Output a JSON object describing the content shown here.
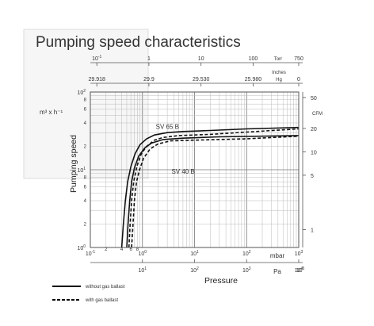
{
  "chart_data": {
    "type": "line",
    "title": "Pumping speed characteristics",
    "xlabel": "Pressure",
    "ylabel": "Pumping speed",
    "x_scale": "log",
    "y_scale": "log",
    "xlim": [
      0.1,
      1000
    ],
    "ylim": [
      1,
      100
    ],
    "grid": true,
    "legend_placement": "bottom-left",
    "y_left_unit": "m³ x h⁻¹",
    "y_left_ticks": [
      {
        "v": 1,
        "b": "10",
        "e": "0"
      },
      {
        "v": 10,
        "b": "10",
        "e": "1"
      },
      {
        "v": 100,
        "b": "10",
        "e": "2"
      }
    ],
    "y_left_minor_labels": [
      "2",
      "4",
      "6",
      "8",
      "2",
      "4",
      "6",
      "8"
    ],
    "x_mbar_unit": "mbar",
    "x_mbar_ticks": [
      {
        "v": 0.1,
        "b": "10",
        "e": "-1"
      },
      {
        "v": 1,
        "b": "10",
        "e": "0"
      },
      {
        "v": 10,
        "b": "10",
        "e": "1"
      },
      {
        "v": 100,
        "b": "10",
        "e": "2"
      },
      {
        "v": 1000,
        "b": "10",
        "e": "3"
      }
    ],
    "x_minor_labels": [
      {
        "v": 0.2,
        "t": "2"
      },
      {
        "v": 0.4,
        "t": "4"
      },
      {
        "v": 0.6,
        "t": "6"
      },
      {
        "v": 0.8,
        "t": "8"
      }
    ],
    "x_pa_unit": "Pa",
    "x_pa_ticks": [
      {
        "v": 1,
        "b": "10",
        "e": "1"
      },
      {
        "v": 10,
        "b": "10",
        "e": "2"
      },
      {
        "v": 100,
        "b": "10",
        "e": "3"
      },
      {
        "v": 1000,
        "b": "10",
        "e": "4"
      }
    ],
    "x_pa_last": {
      "b": "10",
      "e": "5"
    },
    "torr_unit": "Torr",
    "torr_ticks": [
      {
        "v": 0.1333,
        "b": "10",
        "e": "-1"
      },
      {
        "v": 1.333,
        "t": "1"
      },
      {
        "v": 13.33,
        "t": "10"
      },
      {
        "v": 133.3,
        "t": "100"
      },
      {
        "v": 1000,
        "t": "750"
      }
    ],
    "inhg_unit": "Inches Hg",
    "inhg_ticks": [
      {
        "v": 0.1333,
        "t": "29.918"
      },
      {
        "v": 1.333,
        "t": "29.9"
      },
      {
        "v": 13.33,
        "t": "29.530"
      },
      {
        "v": 133.3,
        "t": "25.980"
      },
      {
        "v": 1000,
        "t": "0"
      }
    ],
    "cfm_unit": "CFM",
    "cfm_ticks": [
      {
        "v": 85,
        "t": "50"
      },
      {
        "v": 34,
        "t": "20"
      },
      {
        "v": 17,
        "t": "10"
      },
      {
        "v": 8.5,
        "t": "5"
      },
      {
        "v": 1.7,
        "t": "1"
      }
    ],
    "series": [
      {
        "name": "SV 65 B",
        "dash": false,
        "points": [
          [
            0.4,
            1
          ],
          [
            0.43,
            2
          ],
          [
            0.47,
            4
          ],
          [
            0.52,
            7
          ],
          [
            0.6,
            11
          ],
          [
            0.72,
            16
          ],
          [
            0.9,
            21
          ],
          [
            1.2,
            25
          ],
          [
            1.7,
            28
          ],
          [
            3,
            30
          ],
          [
            6,
            31
          ],
          [
            20,
            32
          ],
          [
            100,
            33.5
          ],
          [
            1000,
            35
          ]
        ]
      },
      {
        "name": "SV 65 B",
        "dash": true,
        "points": [
          [
            0.55,
            1
          ],
          [
            0.58,
            2
          ],
          [
            0.62,
            4
          ],
          [
            0.68,
            7
          ],
          [
            0.78,
            11
          ],
          [
            0.95,
            16
          ],
          [
            1.2,
            20
          ],
          [
            1.7,
            24
          ],
          [
            2.5,
            26
          ],
          [
            5,
            27.5
          ],
          [
            20,
            28.5
          ],
          [
            100,
            30.5
          ],
          [
            1000,
            33.5
          ]
        ]
      },
      {
        "name": "SV 40 B",
        "dash": false,
        "points": [
          [
            0.5,
            1
          ],
          [
            0.53,
            2
          ],
          [
            0.57,
            4
          ],
          [
            0.62,
            7
          ],
          [
            0.7,
            10.5
          ],
          [
            0.85,
            15
          ],
          [
            1.1,
            19
          ],
          [
            1.5,
            22
          ],
          [
            2.5,
            24.5
          ],
          [
            6,
            25.5
          ],
          [
            30,
            26.5
          ],
          [
            1000,
            27.5
          ]
        ]
      },
      {
        "name": "SV 40 B",
        "dash": true,
        "points": [
          [
            0.62,
            1
          ],
          [
            0.66,
            2
          ],
          [
            0.7,
            4
          ],
          [
            0.77,
            7
          ],
          [
            0.88,
            10
          ],
          [
            1.05,
            14
          ],
          [
            1.4,
            18.5
          ],
          [
            2,
            21.5
          ],
          [
            3.5,
            23.5
          ],
          [
            10,
            24
          ],
          [
            100,
            25
          ],
          [
            1000,
            27
          ]
        ]
      }
    ],
    "annotations": [
      {
        "text": "SV 65 B",
        "x": 1.5,
        "y": 36
      },
      {
        "text": "SV 40 B",
        "x": 3.0,
        "y": 9.5
      }
    ]
  },
  "legend": {
    "solid_label": "without gas ballast",
    "dashed_label": "with gas ballast"
  }
}
